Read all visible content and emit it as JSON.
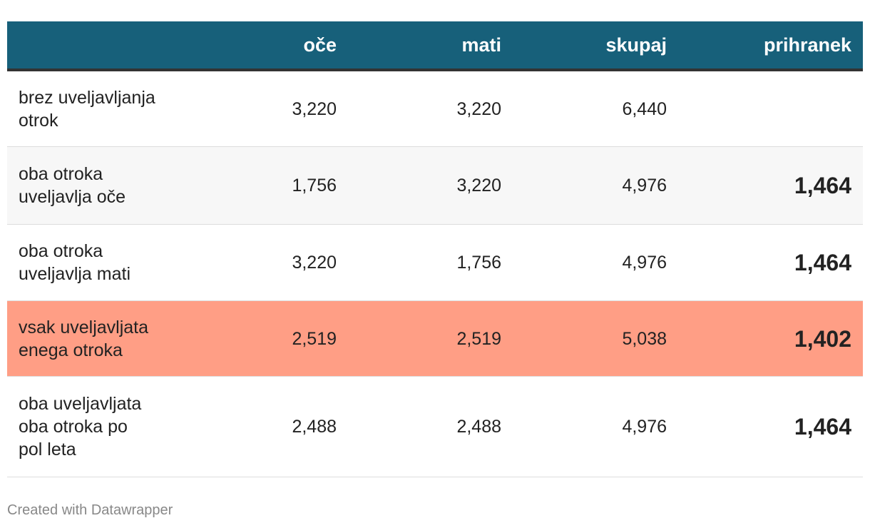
{
  "table": {
    "columns": [
      "oče",
      "mati",
      "skupaj",
      "prihranek"
    ],
    "rows": [
      {
        "label": [
          "brez uveljavljanja",
          "otrok"
        ],
        "cells": [
          "3,220",
          "3,220",
          "6,440"
        ]
      },
      {
        "label": [
          "oba otroka",
          "uveljavlja oče"
        ],
        "cells": [
          "1,756",
          "3,220",
          "4,976",
          "1,464"
        ]
      },
      {
        "label": [
          "oba otroka",
          "uveljavlja mati"
        ],
        "cells": [
          "3,220",
          "1,756",
          "4,976",
          "1,464"
        ]
      },
      {
        "label": [
          "vsak uveljavljata",
          "enega otroka"
        ],
        "cells": [
          "2,519",
          "2,519",
          "5,038",
          "1,402"
        ]
      },
      {
        "label": [
          "oba uveljavljata",
          "oba otroka po",
          "pol leta"
        ],
        "cells": [
          "2,488",
          "2,488",
          "4,976",
          "1,464"
        ]
      }
    ],
    "highlight": {
      "row": 3,
      "color": "#ff9e85"
    },
    "header_color": "#17607a"
  },
  "footer": "Created with Datawrapper"
}
